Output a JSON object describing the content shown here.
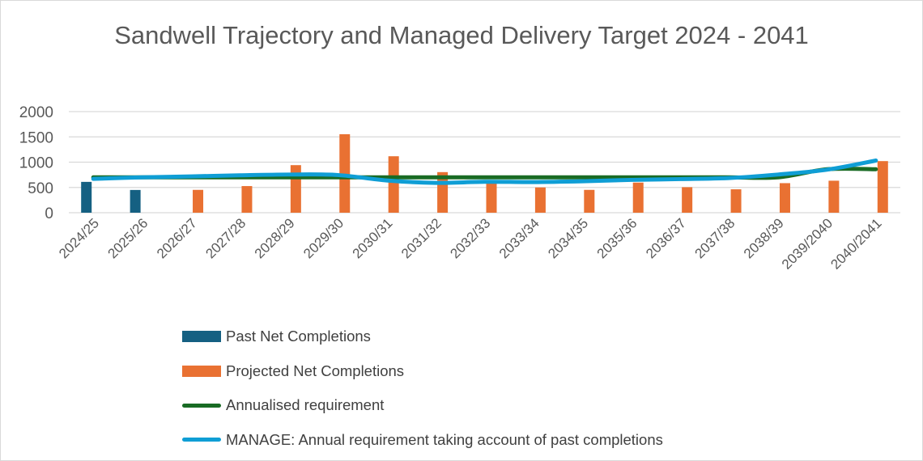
{
  "chart_data": {
    "type": "bar",
    "title": "Sandwell Trajectory and Managed Delivery Target 2024 - 2041",
    "categories": [
      "2024/25",
      "2025/26",
      "2026/27",
      "2027/28",
      "2028/29",
      "2029/30",
      "2030/31",
      "2031/32",
      "2032/33",
      "2033/34",
      "2034/35",
      "2035/36",
      "2036/37",
      "2037/38",
      "2038/39",
      "2039/2040",
      "2040/2041"
    ],
    "ylim": [
      0,
      2000
    ],
    "yticks": [
      "0",
      "500",
      "1000",
      "1500",
      "2000"
    ],
    "grid": true,
    "legend_position": "bottom",
    "series": [
      {
        "name": "Past Net Completions",
        "kind": "bar",
        "color": "#156082",
        "values": [
          610,
          450,
          null,
          null,
          null,
          null,
          null,
          null,
          null,
          null,
          null,
          null,
          null,
          null,
          null,
          null,
          null
        ]
      },
      {
        "name": "Projected Net Completions",
        "kind": "bar",
        "color": "#E97132",
        "values": [
          null,
          null,
          452,
          527,
          941,
          1553,
          1117,
          803,
          595,
          500,
          452,
          596,
          505,
          463,
          585,
          633,
          1021
        ]
      },
      {
        "name": "Annualised requirement",
        "kind": "line",
        "color": "#196B24",
        "values": [
          700,
          700,
          700,
          700,
          700,
          700,
          700,
          700,
          700,
          700,
          700,
          700,
          700,
          700,
          700,
          860,
          860
        ]
      },
      {
        "name": "MANAGE: Annual requirement taking account of past completions",
        "kind": "line",
        "color": "#0F9ED5",
        "values": [
          670,
          700,
          718,
          740,
          755,
          745,
          638,
          590,
          612,
          606,
          622,
          649,
          665,
          686,
          755,
          851,
          1032
        ]
      }
    ]
  }
}
